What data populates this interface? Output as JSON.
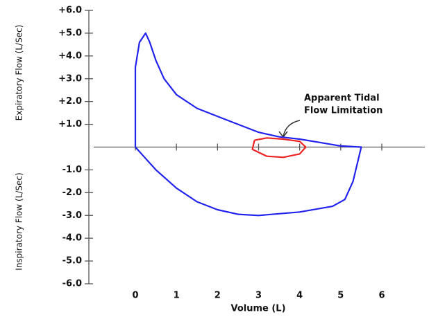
{
  "chart_data": {
    "type": "line",
    "ylabel_upper": "Expiratory Flow (L/Sec)",
    "ylabel_lower": "Inspiratory Flow (L/Sec)",
    "xlabel": "Volume (L)",
    "annotation": [
      "Apparent Tidal",
      "Flow Limitation"
    ],
    "xlim": [
      0,
      6
    ],
    "xticks": [
      0,
      1,
      2,
      3,
      4,
      5,
      6
    ],
    "ylim": [
      -6,
      6
    ],
    "yticks": [
      {
        "value": 6,
        "label": "+6.0"
      },
      {
        "value": 5,
        "label": "+5.0"
      },
      {
        "value": 4,
        "label": "+4.0"
      },
      {
        "value": 3,
        "label": "+3.0"
      },
      {
        "value": 2,
        "label": "+2.0"
      },
      {
        "value": 1,
        "label": "+1.0"
      },
      {
        "value": -1,
        "label": "-1.0"
      },
      {
        "value": -2,
        "label": "-2.0"
      },
      {
        "value": -3,
        "label": "-3.0"
      },
      {
        "value": -4,
        "label": "-4.0"
      },
      {
        "value": -5,
        "label": "-5.0"
      },
      {
        "value": -6,
        "label": "-6.0"
      }
    ],
    "series": [
      {
        "color": "#2222ee",
        "x": [
          0,
          0,
          0,
          0.1,
          0.25,
          0.35,
          0.5,
          0.7,
          1.0,
          1.5,
          2,
          2.5,
          3,
          3.5,
          4,
          4.5,
          5,
          5.5,
          5.3,
          5.1,
          4.8,
          4,
          3,
          2.5,
          2,
          1.5,
          1,
          0.5,
          0.2,
          0
        ],
        "values": [
          0,
          2,
          3.5,
          4.6,
          5.0,
          4.6,
          3.8,
          3.0,
          2.3,
          1.7,
          1.35,
          1.0,
          0.65,
          0.45,
          0.35,
          0.2,
          0.05,
          0,
          -1.5,
          -2.3,
          -2.6,
          -2.85,
          -3.0,
          -2.95,
          -2.75,
          -2.4,
          -1.8,
          -1.0,
          -0.4,
          0
        ]
      },
      {
        "color": "#ee2222",
        "x": [
          2.9,
          3.2,
          3.6,
          4.0,
          4.15,
          4.0,
          3.6,
          3.2,
          2.85,
          2.9
        ],
        "values": [
          0.3,
          0.4,
          0.35,
          0.25,
          0.0,
          -0.3,
          -0.45,
          -0.4,
          -0.1,
          0.3
        ]
      }
    ]
  }
}
